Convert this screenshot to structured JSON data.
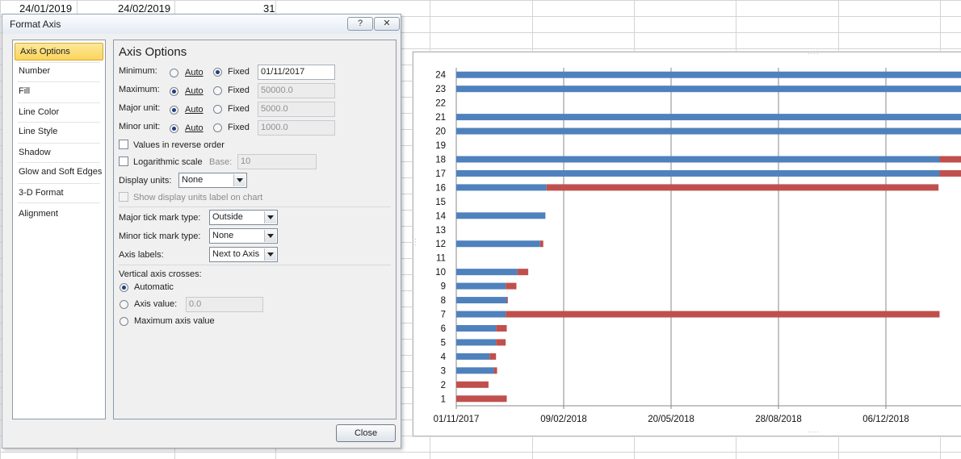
{
  "sheet": {
    "cells": [
      "24/01/2019",
      "24/02/2019",
      "31"
    ]
  },
  "dialog": {
    "title": "Format Axis",
    "help_label": "?",
    "close_x_label": "✕",
    "nav_items": [
      "Axis Options",
      "Number",
      "Fill",
      "Line Color",
      "Line Style",
      "Shadow",
      "Glow and Soft Edges",
      "3-D Format",
      "Alignment"
    ],
    "panel_title": "Axis Options",
    "rows": [
      {
        "label": "Minimum:",
        "auto": "Auto",
        "fixed": "Fixed",
        "selected": "fixed",
        "value": "01/11/2017"
      },
      {
        "label": "Maximum:",
        "auto": "Auto",
        "fixed": "Fixed",
        "selected": "auto",
        "value": "50000.0"
      },
      {
        "label": "Major unit:",
        "auto": "Auto",
        "fixed": "Fixed",
        "selected": "auto",
        "value": "5000.0"
      },
      {
        "label": "Minor unit:",
        "auto": "Auto",
        "fixed": "Fixed",
        "selected": "auto",
        "value": "1000.0"
      }
    ],
    "reverse_label": "Values in reverse order",
    "log_label": "Logarithmic scale",
    "base_label": "Base:",
    "base_value": "10",
    "display_units_label": "Display units:",
    "display_units_value": "None",
    "show_units_label": "Show display units label on chart",
    "major_tick_label": "Major tick mark type:",
    "major_tick_value": "Outside",
    "minor_tick_label": "Minor tick mark type:",
    "minor_tick_value": "None",
    "axis_labels_label": "Axis labels:",
    "axis_labels_value": "Next to Axis",
    "vertical_crosses_label": "Vertical axis crosses:",
    "automatic_label": "Automatic",
    "axis_value_label": "Axis value:",
    "axis_value": "0.0",
    "max_axis_label": "Maximum axis value",
    "close_label": "Close"
  },
  "chart_data": {
    "type": "bar",
    "orientation": "horizontal",
    "stacked": true,
    "categories": [
      "1",
      "2",
      "3",
      "4",
      "5",
      "6",
      "7",
      "8",
      "9",
      "10",
      "11",
      "12",
      "13",
      "14",
      "15",
      "16",
      "17",
      "18",
      "19",
      "20",
      "21",
      "22",
      "23",
      "24"
    ],
    "x_tick_labels": [
      "01/11/2017",
      "09/02/2018",
      "20/05/2018",
      "28/08/2018",
      "06/12/2018"
    ],
    "x_min": "01/11/2017",
    "major_unit_days": 100,
    "series": [
      {
        "color": "#4f81bd",
        "values_days": [
          0,
          0,
          35,
          31,
          37,
          37,
          46,
          47,
          46,
          57,
          0,
          78,
          0,
          83,
          0,
          84,
          450,
          450,
          0,
          470,
          470,
          0,
          470,
          470
        ]
      },
      {
        "color": "#c0504d",
        "values_days": [
          47,
          30,
          3,
          6,
          9,
          10,
          404,
          1,
          10,
          10,
          0,
          3,
          0,
          0,
          0,
          365,
          20,
          20,
          0,
          0,
          0,
          0,
          0,
          0
        ]
      }
    ],
    "grid": "vertical major gridlines",
    "legend": "none"
  }
}
